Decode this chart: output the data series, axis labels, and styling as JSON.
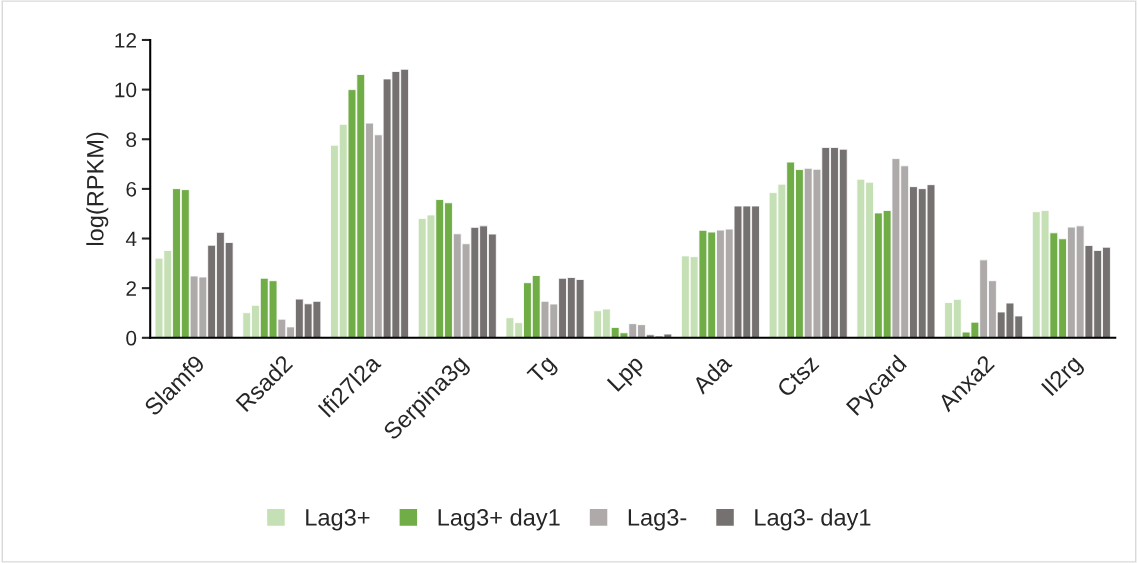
{
  "chart_data": {
    "type": "bar",
    "ylabel": "log(RPKM)",
    "categories": [
      "Slamf9",
      "Rsad2",
      "Ifi27l2a",
      "Serpina3g",
      "Tg",
      "Lpp",
      "Ada",
      "Ctsz",
      "Pycard",
      "Anxa2",
      "Il2rg"
    ],
    "series": [
      {
        "name": "Lag3+",
        "color": "#c5e0b4",
        "values": [
          3.21,
          1.01,
          7.76,
          4.81,
          0.81,
          1.09,
          3.3,
          5.85,
          6.39,
          1.42,
          5.08
        ]
      },
      {
        "color": "#c5e0b4",
        "values": [
          3.52,
          1.31,
          8.6,
          4.95,
          0.61,
          1.16,
          3.27,
          6.19,
          6.27,
          1.55,
          5.13
        ]
      },
      {
        "name": "Lag3+ day1",
        "color": "#70ad47",
        "values": [
          6.01,
          2.4,
          10.0,
          5.57,
          2.22,
          0.42,
          4.33,
          7.08,
          5.03,
          0.23,
          4.23
        ]
      },
      {
        "color": "#70ad47",
        "values": [
          5.97,
          2.3,
          10.61,
          5.44,
          2.51,
          0.2,
          4.26,
          6.78,
          5.13,
          0.63,
          3.99
        ]
      },
      {
        "name": "Lag3-",
        "color": "#aeaaaa",
        "values": [
          2.49,
          0.75,
          8.65,
          4.19,
          1.47,
          0.57,
          4.34,
          6.83,
          7.22,
          3.14,
          4.46
        ]
      },
      {
        "color": "#aeaaaa",
        "values": [
          2.45,
          0.44,
          8.18,
          3.79,
          1.36,
          0.53,
          4.38,
          6.79,
          6.93,
          2.3,
          4.51
        ]
      },
      {
        "name": "Lag3- day1",
        "color": "#767171",
        "values": [
          3.73,
          1.56,
          10.43,
          4.45,
          2.4,
          0.12,
          5.31,
          7.67,
          6.09,
          1.04,
          3.72
        ]
      },
      {
        "color": "#767171",
        "values": [
          4.25,
          1.37,
          10.73,
          4.51,
          2.43,
          0.07,
          5.31,
          7.67,
          6.01,
          1.4,
          3.52
        ]
      },
      {
        "color": "#767171",
        "values": [
          3.84,
          1.47,
          10.82,
          4.18,
          2.35,
          0.15,
          5.31,
          7.6,
          6.17,
          0.88,
          3.65
        ]
      }
    ],
    "ylim": [
      0,
      12
    ],
    "yticks": [
      0,
      2,
      4,
      6,
      8,
      10,
      12
    ],
    "grid": false,
    "legend": "bottom"
  }
}
